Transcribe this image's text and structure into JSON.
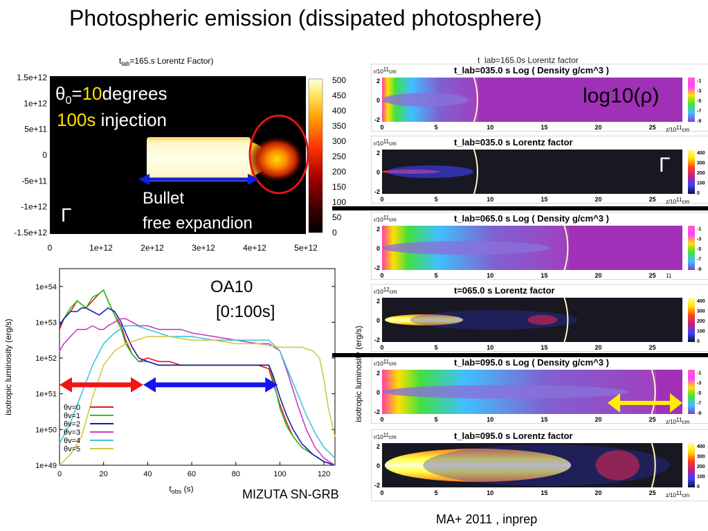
{
  "slide": {
    "title": "Photospheric emission (dissipated photosphere)",
    "credit_left": "MIZUTA SN-GRB",
    "credit_right": "MA+ 2011 , inprep"
  },
  "top_left_map": {
    "header_t": "t",
    "header_sub": "lab",
    "header_rest": "=165.s  Lorentz Factor)",
    "ytick_labels": [
      "1.5e+12",
      "1e+12",
      "5e+11",
      "0",
      "-5e+11",
      "-1e+12",
      "-1.5e+12"
    ],
    "xtick_labels": [
      "0",
      "1e+12",
      "2e+12",
      "3e+12",
      "4e+12",
      "5e+12"
    ],
    "colorbar_labels": [
      "500",
      "450",
      "400",
      "350",
      "300",
      "250",
      "200",
      "150",
      "100",
      "50",
      "0"
    ],
    "theta_prefix": "θ",
    "theta_sub": "0",
    "theta_eq": "=",
    "theta_value": "10",
    "theta_unit": "degrees",
    "injection_value": "100s",
    "injection_text": " injection",
    "bullet_label": "Bullet",
    "expansion_label": "free expandion",
    "gamma_symbol": "Γ",
    "ellipse_color": "#e0141c"
  },
  "chart_data": {
    "type": "line",
    "xlabel_main": "t",
    "xlabel_sub": "obs",
    "xlabel_unit": " (s)",
    "ylabel": "isotropic luminosity (erg/s)",
    "xlim": [
      0,
      125
    ],
    "ylim_log10": [
      49,
      54.5
    ],
    "xtick_labels": [
      "0",
      "20",
      "40",
      "60",
      "80",
      "100",
      "120"
    ],
    "ytick_labels": [
      "1e+54",
      "1e+53",
      "1e+52",
      "1e+51",
      "1e+50",
      "1e+49"
    ],
    "annotation_title": "OA10",
    "annotation_range": "[0:100s]",
    "series": [
      {
        "name": "θv=0",
        "color": "#e8141e",
        "x": [
          0,
          2,
          5,
          8,
          10,
          12,
          15,
          18,
          20,
          22,
          25,
          28,
          30,
          33,
          36,
          40,
          45,
          50,
          55,
          60,
          70,
          80,
          90,
          95,
          97,
          100,
          103,
          106,
          110,
          115,
          120,
          125
        ],
        "log10_y": [
          52.8,
          53.1,
          53.3,
          53.6,
          53.5,
          53.4,
          53.6,
          53.8,
          53.9,
          53.6,
          53.2,
          52.9,
          52.5,
          52.1,
          51.9,
          52.0,
          51.9,
          51.9,
          51.8,
          51.8,
          51.8,
          51.8,
          51.8,
          51.7,
          51.3,
          50.7,
          50.2,
          49.8,
          49.5,
          49.3,
          49.1,
          49.0
        ]
      },
      {
        "name": "θv=1",
        "color": "#22c41e",
        "x": [
          0,
          2,
          5,
          8,
          10,
          12,
          15,
          18,
          20,
          22,
          25,
          28,
          30,
          33,
          36,
          40,
          45,
          50,
          55,
          60,
          70,
          80,
          90,
          95,
          97,
          100,
          103,
          106,
          110,
          115,
          120,
          125
        ],
        "log10_y": [
          52.9,
          53.1,
          53.4,
          53.6,
          53.5,
          53.4,
          53.7,
          53.8,
          53.9,
          53.6,
          53.2,
          52.8,
          52.4,
          52.1,
          51.9,
          51.9,
          51.8,
          51.8,
          51.8,
          51.8,
          51.8,
          51.8,
          51.8,
          51.8,
          51.4,
          50.6,
          50.1,
          49.8,
          49.5,
          49.3,
          49.1,
          49.0
        ]
      },
      {
        "name": "θv=2",
        "color": "#1a1aa8",
        "x": [
          0,
          2,
          5,
          8,
          10,
          12,
          15,
          18,
          20,
          22,
          25,
          28,
          30,
          33,
          36,
          40,
          45,
          50,
          55,
          60,
          70,
          80,
          90,
          95,
          97,
          100,
          103,
          106,
          110,
          115,
          120,
          125
        ],
        "log10_y": [
          52.9,
          53.1,
          53.3,
          53.3,
          53.4,
          53.4,
          53.3,
          53.2,
          53.3,
          53.4,
          53.3,
          53.0,
          52.7,
          52.3,
          52.0,
          51.9,
          51.8,
          51.8,
          51.8,
          51.8,
          51.8,
          51.8,
          51.8,
          51.8,
          51.5,
          50.9,
          50.4,
          50.0,
          49.6,
          49.3,
          49.1,
          49.0
        ]
      },
      {
        "name": "θv=3",
        "color": "#c83cc8",
        "x": [
          0,
          2,
          5,
          8,
          10,
          12,
          15,
          18,
          20,
          22,
          25,
          28,
          30,
          33,
          36,
          40,
          45,
          50,
          55,
          60,
          70,
          80,
          90,
          95,
          100,
          104,
          108,
          112,
          116,
          120,
          125
        ],
        "log10_y": [
          52.2,
          52.4,
          52.6,
          52.8,
          52.8,
          52.8,
          52.9,
          52.8,
          52.8,
          52.9,
          53.0,
          53.1,
          53.1,
          53.0,
          52.9,
          52.9,
          52.8,
          52.8,
          52.8,
          52.7,
          52.6,
          52.5,
          52.4,
          52.4,
          52.2,
          51.5,
          50.7,
          50.0,
          49.5,
          49.2,
          49.0
        ]
      },
      {
        "name": "θv=4",
        "color": "#3cc8d8",
        "x": [
          0,
          5,
          10,
          15,
          20,
          25,
          30,
          35,
          40,
          45,
          50,
          60,
          70,
          80,
          90,
          95,
          100,
          104,
          108,
          112,
          116,
          120,
          125
        ],
        "log10_y": [
          49.6,
          50.2,
          51.0,
          51.8,
          52.4,
          52.7,
          52.9,
          52.9,
          52.8,
          52.7,
          52.6,
          52.6,
          52.5,
          52.5,
          52.5,
          52.5,
          52.2,
          51.6,
          51.0,
          50.4,
          49.9,
          49.5,
          49.2
        ]
      },
      {
        "name": "θv=5",
        "color": "#d0c844",
        "x": [
          0,
          5,
          10,
          15,
          20,
          25,
          30,
          35,
          40,
          50,
          60,
          70,
          80,
          90,
          100,
          110,
          115,
          118,
          120,
          122,
          125
        ],
        "log10_y": [
          49.0,
          49.3,
          49.8,
          50.9,
          51.8,
          52.2,
          52.4,
          52.5,
          52.6,
          52.6,
          52.5,
          52.5,
          52.4,
          52.4,
          52.3,
          52.3,
          52.2,
          52.0,
          51.4,
          50.6,
          49.8
        ]
      }
    ],
    "red_arrow": {
      "x_from": 0,
      "x_to": 38,
      "log10_y": 51.25,
      "color": "#f01414"
    },
    "blue_arrow": {
      "x_from": 38,
      "x_to": 99,
      "log10_y": 51.25,
      "color": "#1414f0"
    }
  },
  "right_panels": {
    "top_cutoff_text": "t_lab=165.0s Lorentz factor",
    "axis_y_label_left": "isotropic luminosity (erg/s)",
    "log_rho_label": "log10(ρ)",
    "gamma_label": "Γ",
    "panels": [
      {
        "title": "t_lab=035.0 s Log ( Density g/cm^3 )",
        "unit_prefix": "r/10",
        "unit_exp": "11",
        "unit_suffix": "cm",
        "kind": "density",
        "front": 0.33,
        "ytick_labels": [
          "2",
          "0",
          "-2"
        ],
        "xtick_labels": [
          "0",
          "5",
          "10",
          "15",
          "20",
          "25"
        ],
        "xunit_prefix": "z/10",
        "xunit_exp": "11",
        "xunit_suffix": "cm",
        "cbar_labels": [
          "-1",
          "-3",
          "-5",
          "-7",
          "-9"
        ]
      },
      {
        "title": "t_lab=035.0 s Lorentz factor",
        "unit_prefix": "r/10",
        "unit_exp": "11",
        "unit_suffix": "cm",
        "kind": "lorentz_small",
        "front": 0.33,
        "ytick_labels": [
          "2",
          "0",
          "-2"
        ],
        "xtick_labels": [
          "0",
          "5",
          "10",
          "15",
          "20",
          "25"
        ],
        "xunit_prefix": "z/10",
        "xunit_exp": "11",
        "xunit_suffix": "cm",
        "cbar_labels": [
          "400",
          "300",
          "200",
          "100",
          "0"
        ]
      },
      {
        "title": "t_lab=065.0 s Log ( Density g/cm^3 )",
        "unit_prefix": "r/10",
        "unit_exp": "11",
        "unit_suffix": "cm",
        "kind": "density",
        "front": 0.64,
        "ytick_labels": [
          "2",
          "0",
          "-2"
        ],
        "xtick_labels": [
          "0",
          "5",
          "10",
          "15",
          "20",
          "25"
        ],
        "xunit_prefix": "",
        "xunit_exp": "11",
        "xunit_suffix": "",
        "cbar_labels": [
          "-1",
          "-3",
          "-5",
          "-7",
          "-9"
        ]
      },
      {
        "title": "t=065.0 s Lorentz factor",
        "unit_prefix": "r/10",
        "unit_exp": "12",
        "unit_suffix": "cm",
        "kind": "lorentz_mid",
        "front": 0.64,
        "ytick_labels": [
          "2",
          "0",
          "-2"
        ],
        "xtick_labels": [
          "0",
          "5",
          "10",
          "15",
          "20",
          "25"
        ],
        "xunit_prefix": "",
        "xunit_exp": "",
        "xunit_suffix": "",
        "cbar_labels": [
          "400",
          "300",
          "200",
          "100",
          "0"
        ]
      },
      {
        "title": "t_lab=095.0 s Log ( Density g/cm^3 )",
        "unit_prefix": "r/10",
        "unit_exp": "11",
        "unit_suffix": "cm",
        "kind": "density",
        "front": 0.94,
        "ytick_labels": [
          "2",
          "0",
          "-2"
        ],
        "xtick_labels": [
          "0",
          "5",
          "10",
          "15",
          "20",
          "25"
        ],
        "xunit_prefix": "z/10",
        "xunit_exp": "11",
        "xunit_suffix": "cm",
        "cbar_labels": [
          "-1",
          "-3",
          "-5",
          "-7",
          "-9"
        ]
      },
      {
        "title": "t_lab=095.0 s Lorentz factor",
        "unit_prefix": "r/10",
        "unit_exp": "11",
        "unit_suffix": "cm",
        "kind": "lorentz_big",
        "front": 0.94,
        "ytick_labels": [
          "2",
          "0",
          "-2"
        ],
        "xtick_labels": [
          "0",
          "5",
          "10",
          "15",
          "20",
          "25"
        ],
        "xunit_prefix": "z/10",
        "xunit_exp": "11",
        "xunit_suffix": "cm",
        "cbar_labels": [
          "400",
          "300",
          "200",
          "100",
          "0"
        ]
      }
    ],
    "yellow_arrow_color": "#ffee00"
  }
}
